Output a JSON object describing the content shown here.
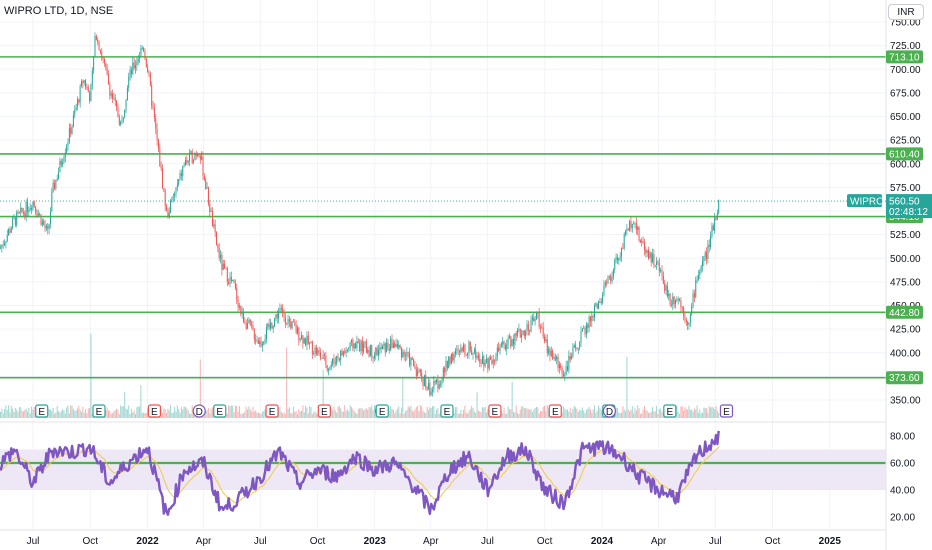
{
  "title": "WIPRO LTD, 1D, NSE",
  "currency": "INR",
  "symbol": "WIPRO",
  "last_price": "560.50",
  "countdown": "02:48:12",
  "colors": {
    "up": "#26a69a",
    "down": "#ef5350",
    "levels": "#4caf50",
    "rsi": "#7e57c2",
    "rsi_ma": "#f5c842",
    "rsi_band": "#ede7f6",
    "earnings": "#26a69a",
    "earnings_down": "#ef5350",
    "dividend": "#7e57c2"
  },
  "chart_data": [
    {
      "type": "candlestick",
      "title": "WIPRO LTD, 1D, NSE",
      "x_ticks": [
        "Jul",
        "Oct",
        "2022",
        "Apr",
        "Jul",
        "Oct",
        "2023",
        "Apr",
        "Jul",
        "Oct",
        "2024",
        "Apr",
        "Jul",
        "Oct",
        "2025"
      ],
      "ylim": [
        345,
        755
      ],
      "y_ticks": [
        "750.00",
        "725.00",
        "700.00",
        "675.00",
        "650.00",
        "625.00",
        "600.00",
        "575.00",
        "550.00",
        "525.00",
        "500.00",
        "475.00",
        "450.00",
        "425.00",
        "400.00",
        "375.00",
        "350.00"
      ],
      "horizontal_levels": [
        {
          "value": 713.1,
          "label": "713.10"
        },
        {
          "value": 610.4,
          "label": "610.40"
        },
        {
          "value": 544.1,
          "label": "544.10"
        },
        {
          "value": 442.8,
          "label": "442.80"
        },
        {
          "value": 373.6,
          "label": "373.60"
        }
      ],
      "price_path": [
        {
          "date": "2021-05",
          "close": 500
        },
        {
          "date": "2021-06",
          "close": 540
        },
        {
          "date": "2021-07",
          "close": 560
        },
        {
          "date": "2021-07-25",
          "close": 525
        },
        {
          "date": "2021-08",
          "close": 570
        },
        {
          "date": "2021-09",
          "close": 640
        },
        {
          "date": "2021-09-20",
          "close": 690
        },
        {
          "date": "2021-10",
          "close": 670
        },
        {
          "date": "2021-10-10",
          "close": 740
        },
        {
          "date": "2021-11",
          "close": 680
        },
        {
          "date": "2021-11-20",
          "close": 640
        },
        {
          "date": "2021-12",
          "close": 690
        },
        {
          "date": "2021-12-25",
          "close": 725
        },
        {
          "date": "2022-01",
          "close": 700
        },
        {
          "date": "2022-01-15",
          "close": 630
        },
        {
          "date": "2022-02",
          "close": 545
        },
        {
          "date": "2022-02-20",
          "close": 580
        },
        {
          "date": "2022-03",
          "close": 600
        },
        {
          "date": "2022-03-25",
          "close": 615
        },
        {
          "date": "2022-04",
          "close": 590
        },
        {
          "date": "2022-04-20",
          "close": 520
        },
        {
          "date": "2022-05",
          "close": 490
        },
        {
          "date": "2022-05-20",
          "close": 470
        },
        {
          "date": "2022-06",
          "close": 440
        },
        {
          "date": "2022-07",
          "close": 410
        },
        {
          "date": "2022-08",
          "close": 445
        },
        {
          "date": "2022-09",
          "close": 420
        },
        {
          "date": "2022-10",
          "close": 400
        },
        {
          "date": "2022-10-20",
          "close": 385
        },
        {
          "date": "2022-11",
          "close": 395
        },
        {
          "date": "2022-12",
          "close": 410
        },
        {
          "date": "2023-01",
          "close": 400
        },
        {
          "date": "2023-02",
          "close": 410
        },
        {
          "date": "2023-03",
          "close": 390
        },
        {
          "date": "2023-04",
          "close": 360
        },
        {
          "date": "2023-04-20",
          "close": 375
        },
        {
          "date": "2023-05",
          "close": 395
        },
        {
          "date": "2023-06",
          "close": 405
        },
        {
          "date": "2023-07",
          "close": 390
        },
        {
          "date": "2023-08",
          "close": 410
        },
        {
          "date": "2023-09",
          "close": 425
        },
        {
          "date": "2023-09-20",
          "close": 440
        },
        {
          "date": "2023-10",
          "close": 410
        },
        {
          "date": "2023-10-25",
          "close": 385
        },
        {
          "date": "2023-11",
          "close": 380
        },
        {
          "date": "2023-12",
          "close": 420
        },
        {
          "date": "2024-01",
          "close": 460
        },
        {
          "date": "2024-01-20",
          "close": 490
        },
        {
          "date": "2024-02",
          "close": 510
        },
        {
          "date": "2024-02-20",
          "close": 545
        },
        {
          "date": "2024-03",
          "close": 520
        },
        {
          "date": "2024-04",
          "close": 490
        },
        {
          "date": "2024-04-20",
          "close": 455
        },
        {
          "date": "2024-05",
          "close": 460
        },
        {
          "date": "2024-05-20",
          "close": 430
        },
        {
          "date": "2024-06",
          "close": 480
        },
        {
          "date": "2024-06-20",
          "close": 510
        },
        {
          "date": "2024-07",
          "close": 545
        },
        {
          "date": "2024-07-08",
          "close": 560.5
        }
      ],
      "volume": "per-bar volume histogram along the bottom of the price pane, red and green bars"
    },
    {
      "type": "line",
      "title": "",
      "ylim": [
        15,
        88
      ],
      "y_ticks": [
        "80.00",
        "60.00",
        "40.00",
        "20.00"
      ],
      "band": [
        40,
        70
      ],
      "horizontal_levels": [
        {
          "value": 60
        }
      ],
      "series": [
        {
          "values_by_date": [
            {
              "date": "2021-05",
              "value": 55
            },
            {
              "date": "2021-06",
              "value": 70
            },
            {
              "date": "2021-07",
              "value": 45
            },
            {
              "date": "2021-08",
              "value": 70
            },
            {
              "date": "2021-09",
              "value": 68
            },
            {
              "date": "2021-10",
              "value": 72
            },
            {
              "date": "2021-11",
              "value": 45
            },
            {
              "date": "2021-12",
              "value": 60
            },
            {
              "date": "2022-01",
              "value": 72
            },
            {
              "date": "2022-02",
              "value": 20
            },
            {
              "date": "2022-03",
              "value": 55
            },
            {
              "date": "2022-04",
              "value": 60
            },
            {
              "date": "2022-05",
              "value": 25
            },
            {
              "date": "2022-06",
              "value": 35
            },
            {
              "date": "2022-07",
              "value": 50
            },
            {
              "date": "2022-08",
              "value": 68
            },
            {
              "date": "2022-09",
              "value": 45
            },
            {
              "date": "2022-10",
              "value": 55
            },
            {
              "date": "2022-11",
              "value": 50
            },
            {
              "date": "2022-12",
              "value": 65
            },
            {
              "date": "2023-01",
              "value": 55
            },
            {
              "date": "2023-02",
              "value": 60
            },
            {
              "date": "2023-03",
              "value": 45
            },
            {
              "date": "2023-04",
              "value": 25
            },
            {
              "date": "2023-05",
              "value": 55
            },
            {
              "date": "2023-06",
              "value": 65
            },
            {
              "date": "2023-07",
              "value": 40
            },
            {
              "date": "2023-08",
              "value": 65
            },
            {
              "date": "2023-09",
              "value": 70
            },
            {
              "date": "2023-10",
              "value": 40
            },
            {
              "date": "2023-11",
              "value": 30
            },
            {
              "date": "2023-12",
              "value": 70
            },
            {
              "date": "2024-01",
              "value": 72
            },
            {
              "date": "2024-02",
              "value": 65
            },
            {
              "date": "2024-03",
              "value": 50
            },
            {
              "date": "2024-04",
              "value": 40
            },
            {
              "date": "2024-05",
              "value": 35
            },
            {
              "date": "2024-06",
              "value": 65
            },
            {
              "date": "2024-07",
              "value": 78
            }
          ]
        }
      ]
    }
  ],
  "events": [
    {
      "date": "2021-07-15",
      "label": "E",
      "kind": "earnings-up"
    },
    {
      "date": "2021-10-15",
      "label": "E",
      "kind": "earnings-up"
    },
    {
      "date": "2022-01-12",
      "label": "E",
      "kind": "earnings-down"
    },
    {
      "date": "2022-03-25",
      "label": "D",
      "kind": "dividend"
    },
    {
      "date": "2022-04-27",
      "label": "E",
      "kind": "earnings-up"
    },
    {
      "date": "2022-07-20",
      "label": "E",
      "kind": "earnings-down"
    },
    {
      "date": "2022-10-12",
      "label": "E",
      "kind": "earnings-down"
    },
    {
      "date": "2023-01-12",
      "label": "D",
      "kind": "dividend"
    },
    {
      "date": "2023-01-13",
      "label": "E",
      "kind": "earnings-up"
    },
    {
      "date": "2023-04-27",
      "label": "E",
      "kind": "earnings-up"
    },
    {
      "date": "2023-07-13",
      "label": "E",
      "kind": "earnings-down"
    },
    {
      "date": "2023-10-18",
      "label": "E",
      "kind": "earnings-down"
    },
    {
      "date": "2024-01-12",
      "label": "E",
      "kind": "earnings-up"
    },
    {
      "date": "2024-01-13",
      "label": "D",
      "kind": "dividend"
    },
    {
      "date": "2024-04-19",
      "label": "E",
      "kind": "earnings-up"
    },
    {
      "date": "2024-07-19",
      "label": "E",
      "kind": "dividend-hollow"
    }
  ]
}
